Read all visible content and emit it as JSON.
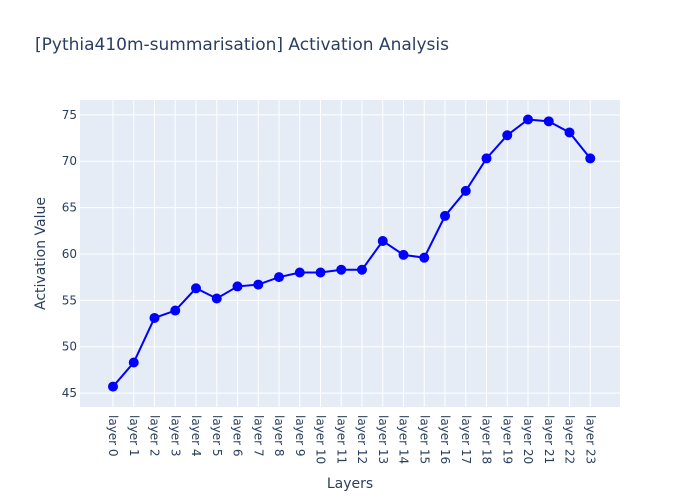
{
  "chart_data": {
    "type": "line",
    "title": "[Pythia410m-summarisation] Activation Analysis",
    "xlabel": "Layers",
    "ylabel": "Activation Value",
    "categories": [
      "layer 0",
      "layer 1",
      "layer 2",
      "layer 3",
      "layer 4",
      "layer 5",
      "layer 6",
      "layer 7",
      "layer 8",
      "layer 9",
      "layer 10",
      "layer 11",
      "layer 12",
      "layer 13",
      "layer 14",
      "layer 15",
      "layer 16",
      "layer 17",
      "layer 18",
      "layer 19",
      "layer 20",
      "layer 21",
      "layer 22",
      "layer 23"
    ],
    "values": [
      45.7,
      48.3,
      53.1,
      53.9,
      56.3,
      55.2,
      56.5,
      56.7,
      57.5,
      58.0,
      58.0,
      58.3,
      58.3,
      61.4,
      59.9,
      59.6,
      64.1,
      66.8,
      70.3,
      72.8,
      74.5,
      74.3,
      73.1,
      70.3
    ],
    "yticks": [
      45,
      50,
      55,
      60,
      65,
      70,
      75
    ],
    "ylim": [
      43.5,
      76.6
    ],
    "grid": true,
    "line_color": "#0000ff",
    "marker_color": "#0000ff",
    "plot_bg": "#e5ecf6",
    "grid_color": "#ffffff"
  }
}
